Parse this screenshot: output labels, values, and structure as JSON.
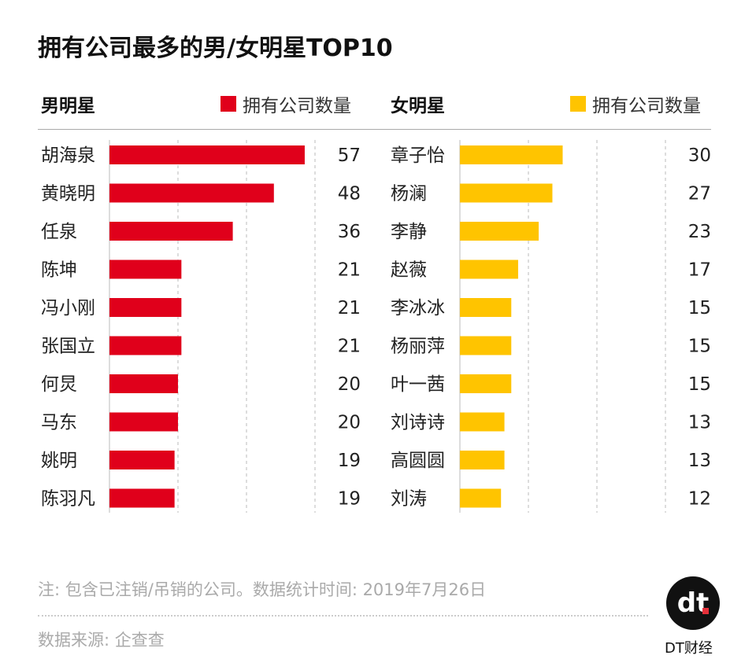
{
  "chart_data": [
    {
      "type": "bar",
      "orientation": "horizontal",
      "panel_title": "男明星",
      "legend": "拥有公司数量",
      "color": "#e0001b",
      "categories": [
        "胡海泉",
        "黄晓明",
        "任泉",
        "陈坤",
        "冯小刚",
        "张国立",
        "何炅",
        "马东",
        "姚明",
        "陈羽凡"
      ],
      "values": [
        57,
        48,
        36,
        21,
        21,
        21,
        20,
        20,
        19,
        19
      ],
      "xlim": [
        0,
        60
      ],
      "grid": [
        0,
        20,
        40,
        60
      ]
    },
    {
      "type": "bar",
      "orientation": "horizontal",
      "panel_title": "女明星",
      "legend": "拥有公司数量",
      "color": "#ffc400",
      "categories": [
        "章子怡",
        "杨澜",
        "李静",
        "赵薇",
        "李冰冰",
        "杨丽萍",
        "叶一茜",
        "刘诗诗",
        "高圆圆",
        "刘涛"
      ],
      "values": [
        30,
        27,
        23,
        17,
        15,
        15,
        15,
        13,
        13,
        12
      ],
      "xlim": [
        0,
        60
      ],
      "grid": [
        0,
        20,
        40,
        60
      ]
    }
  ],
  "title": "拥有公司最多的男/女明星TOP10",
  "note": "注: 包含已注销/吊销的公司。数据统计时间: 2019年7月26日",
  "source": "数据来源: 企查查",
  "logo": {
    "mark": "dt",
    "brand": "DT财经"
  }
}
